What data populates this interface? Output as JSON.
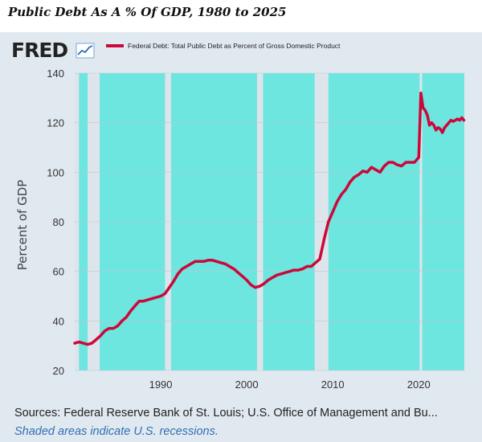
{
  "title": "Public Debt As A % Of GDP, 1980 to 2025",
  "logo_text": "FRED",
  "logo_icon": "line-chart-icon",
  "colors": {
    "plot_background": "#6de6e0",
    "recession_shade": "#dde4eb",
    "line": "#cc0839",
    "panel": "#e1e9f0",
    "note": "#2f6fb4"
  },
  "footer": {
    "sources": "Sources: Federal Reserve Bank of St. Louis; U.S. Office of Management and Bu...",
    "note": "Shaded areas indicate U.S. recessions."
  },
  "chart_data": {
    "type": "line",
    "title": "",
    "xlabel": "",
    "ylabel": "Percent of GDP",
    "xlim": [
      1980,
      2025.3
    ],
    "ylim": [
      20,
      140
    ],
    "y_ticks": [
      20,
      40,
      60,
      80,
      100,
      120,
      140
    ],
    "x_ticks": [
      1990,
      2000,
      2010,
      2020
    ],
    "grid": "horizontal",
    "legend_position": "top",
    "recessions": [
      [
        1980.0,
        1980.5
      ],
      [
        1981.5,
        1982.9
      ],
      [
        1990.5,
        1991.2
      ],
      [
        2001.2,
        2001.9
      ],
      [
        2007.9,
        2009.5
      ],
      [
        2020.1,
        2020.4
      ]
    ],
    "series": [
      {
        "name": "Federal Debt: Total Public Debt as Percent of Gross Domestic Product",
        "x": [
          1980.0,
          1980.5,
          1981.0,
          1981.5,
          1982.0,
          1982.5,
          1983.0,
          1983.5,
          1984.0,
          1984.5,
          1985.0,
          1985.5,
          1986.0,
          1986.5,
          1987.0,
          1987.5,
          1988.0,
          1988.5,
          1989.0,
          1989.5,
          1990.0,
          1990.5,
          1991.0,
          1991.5,
          1992.0,
          1992.5,
          1993.0,
          1993.5,
          1994.0,
          1994.5,
          1995.0,
          1995.5,
          1996.0,
          1996.5,
          1997.0,
          1997.5,
          1998.0,
          1998.5,
          1999.0,
          1999.5,
          2000.0,
          2000.5,
          2001.0,
          2001.5,
          2002.0,
          2002.5,
          2003.0,
          2003.5,
          2004.0,
          2004.5,
          2005.0,
          2005.5,
          2006.0,
          2006.5,
          2007.0,
          2007.5,
          2008.0,
          2008.5,
          2009.0,
          2009.5,
          2010.0,
          2010.5,
          2011.0,
          2011.5,
          2012.0,
          2012.5,
          2013.0,
          2013.5,
          2014.0,
          2014.5,
          2015.0,
          2015.5,
          2016.0,
          2016.5,
          2017.0,
          2017.5,
          2018.0,
          2018.5,
          2019.0,
          2019.5,
          2020.0,
          2020.25,
          2020.5,
          2020.75,
          2021.0,
          2021.25,
          2021.5,
          2021.75,
          2022.0,
          2022.25,
          2022.5,
          2022.75,
          2023.0,
          2023.25,
          2023.5,
          2023.75,
          2024.0,
          2024.25,
          2024.5,
          2024.75,
          2025.0,
          2025.25
        ],
        "values": [
          31,
          31.5,
          31,
          30.5,
          31,
          32.5,
          34,
          36,
          37,
          37,
          38,
          40,
          41.5,
          44,
          46,
          48,
          48,
          48.5,
          49,
          49.5,
          50,
          51,
          53.5,
          56,
          59,
          61,
          62,
          63,
          64,
          64,
          64,
          64.5,
          64.5,
          64,
          63.5,
          63,
          62,
          61,
          59.5,
          58,
          56.5,
          54.5,
          53.5,
          54,
          55,
          56.5,
          57.5,
          58.5,
          59,
          59.5,
          60,
          60.5,
          60.5,
          61,
          62,
          62,
          63.5,
          65,
          73,
          80,
          84,
          88,
          91,
          93,
          96,
          98,
          99,
          100.5,
          100,
          102,
          101,
          100,
          102.5,
          104,
          104,
          103,
          102.5,
          104,
          104,
          104,
          106,
          132,
          126,
          125,
          123,
          119,
          120,
          119,
          117,
          118,
          117.5,
          116,
          118,
          119,
          120,
          121,
          120.5,
          121,
          121.5,
          121,
          122,
          121
        ]
      }
    ]
  }
}
